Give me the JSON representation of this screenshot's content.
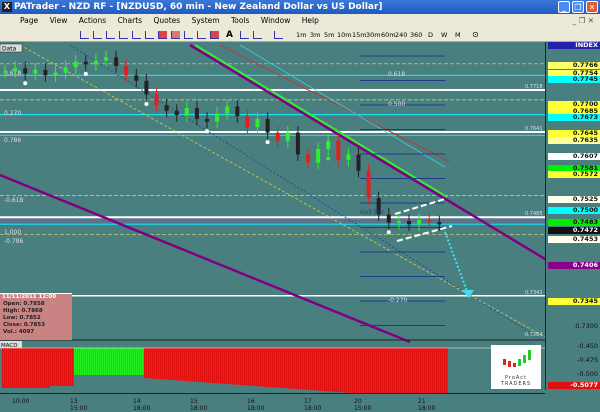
{
  "window": {
    "title": "PATrader - NZD RF - [NZDUSD, 60 min - New Zealand Dollar vs US Dollar]",
    "app_icon": "x-app-icon"
  },
  "menu": [
    "Page",
    "View",
    "Actions",
    "Charts",
    "Quotes",
    "System",
    "Tools",
    "Window",
    "Help"
  ],
  "timeframes": [
    "1m",
    "3m",
    "5m",
    "10m",
    "15m",
    "30m",
    "60m",
    "240",
    "360",
    "D",
    "W",
    "M"
  ],
  "chart_data": {
    "type": "candlestick",
    "symbol": "NZDUSD",
    "interval": "60 min",
    "ylim": [
      0.726,
      0.7806
    ],
    "legend_label": "Data",
    "closes": [
      0.7752,
      0.7758,
      0.7748,
      0.7755,
      0.7745,
      0.775,
      0.776,
      0.777,
      0.7765,
      0.7772,
      0.7778,
      0.7762,
      0.7745,
      0.7735,
      0.771,
      0.769,
      0.768,
      0.7672,
      0.7685,
      0.7665,
      0.766,
      0.7675,
      0.7688,
      0.767,
      0.765,
      0.7665,
      0.764,
      0.7625,
      0.764,
      0.76,
      0.7585,
      0.761,
      0.7625,
      0.759,
      0.76,
      0.757,
      0.752,
      0.749,
      0.7475,
      0.7478,
      0.7472,
      0.748,
      0.7476,
      0.7472
    ],
    "fib_labels": {
      "left": [
        "0.270",
        "0.786",
        "-0.618",
        "1.000",
        "-0.786",
        "0.618"
      ],
      "mid": [
        "0.618",
        "0.500",
        "-0.270"
      ],
      "right": [
        "0.7718",
        "0.7641",
        "0.7485",
        "0.7341",
        "0.7264"
      ]
    },
    "annotation": "Gx5 Bar",
    "price_labels": [
      {
        "v": "0.7766",
        "c": "#ffff66"
      },
      {
        "v": "0.7754",
        "c": "#ffff66"
      },
      {
        "v": "0.7745",
        "c": "#00ffff"
      },
      {
        "v": "0.7700",
        "c": "#ffff33"
      },
      {
        "v": "0.7685",
        "c": "#ffff33"
      },
      {
        "v": "0.7673",
        "c": "#00ffff"
      },
      {
        "v": "0.7645",
        "c": "#ffff33"
      },
      {
        "v": "0.7635",
        "c": "#ffff99"
      },
      {
        "v": "0.7607",
        "c": "#ffffff"
      },
      {
        "v": "0.7581",
        "c": "#00ee00"
      },
      {
        "v": "0.7572",
        "c": "#ffff33"
      },
      {
        "v": "0.7525",
        "c": "#ffffee"
      },
      {
        "v": "0.7500",
        "c": "#00ffff"
      },
      {
        "v": "0.7483",
        "c": "#00ee00"
      },
      {
        "v": "0.7472",
        "c": "#111111"
      },
      {
        "v": "0.7453",
        "c": "#ffffee"
      },
      {
        "v": "0.7406",
        "c": "#8b008b"
      },
      {
        "v": "0.7345",
        "c": "#ffff33"
      },
      {
        "v": "0.7300",
        "c": ""
      }
    ],
    "index_label": "INDEX",
    "x_ticks": [
      "10:00",
      "13 15:00",
      "14 18:00",
      "15 18:00",
      "16 18:00",
      "17 18:00",
      "20 15:00",
      "21 18:00"
    ]
  },
  "info": {
    "datetime": "11/11/2011 12:00",
    "open": "Open: 0.7858",
    "high": "High: 0.7868",
    "low": "Low: 0.7852",
    "close": "Close: 0.7853",
    "vol": "Vol.: 4097"
  },
  "macd": {
    "label": "MACD",
    "ticks": [
      "-0.450",
      "-0.475",
      "-0.500"
    ],
    "current": "-0.5077",
    "colors": {
      "neg": "#e01010",
      "pos": "#20ee20"
    }
  },
  "logo": {
    "text": "ProAct TRADERS"
  }
}
